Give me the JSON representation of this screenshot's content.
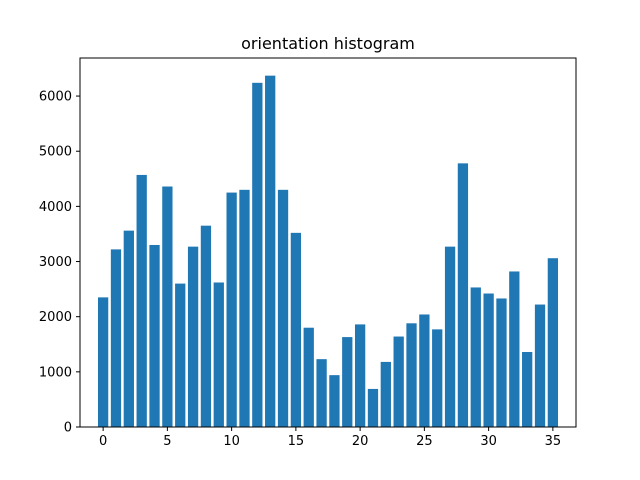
{
  "chart_data": {
    "type": "bar",
    "title": "orientation histogram",
    "xlabel": "",
    "ylabel": "",
    "x": [
      0,
      1,
      2,
      3,
      4,
      5,
      6,
      7,
      8,
      9,
      10,
      11,
      12,
      13,
      14,
      15,
      16,
      17,
      18,
      19,
      20,
      21,
      22,
      23,
      24,
      25,
      26,
      27,
      28,
      29,
      30,
      31,
      32,
      33,
      34,
      35
    ],
    "values": [
      2350,
      3220,
      3560,
      4570,
      3300,
      4360,
      2600,
      3270,
      3650,
      2620,
      4250,
      4300,
      6240,
      6370,
      4300,
      3520,
      1800,
      1230,
      940,
      1630,
      1860,
      690,
      1180,
      1640,
      1880,
      2040,
      1770,
      3270,
      4780,
      2530,
      2420,
      2330,
      2820,
      1360,
      2220,
      3060
    ],
    "xlim": [
      -1.8,
      36.8
    ],
    "ylim": [
      0,
      6690
    ],
    "xticks": [
      0,
      5,
      10,
      15,
      20,
      25,
      30,
      35
    ],
    "yticks": [
      0,
      1000,
      2000,
      3000,
      4000,
      5000,
      6000
    ],
    "xtick_labels": [
      "0",
      "5",
      "10",
      "15",
      "20",
      "25",
      "30",
      "35"
    ],
    "ytick_labels": [
      "0",
      "1000",
      "2000",
      "3000",
      "4000",
      "5000",
      "6000"
    ],
    "bar_color": "#1f77b4",
    "grid": false,
    "legend": "none"
  }
}
